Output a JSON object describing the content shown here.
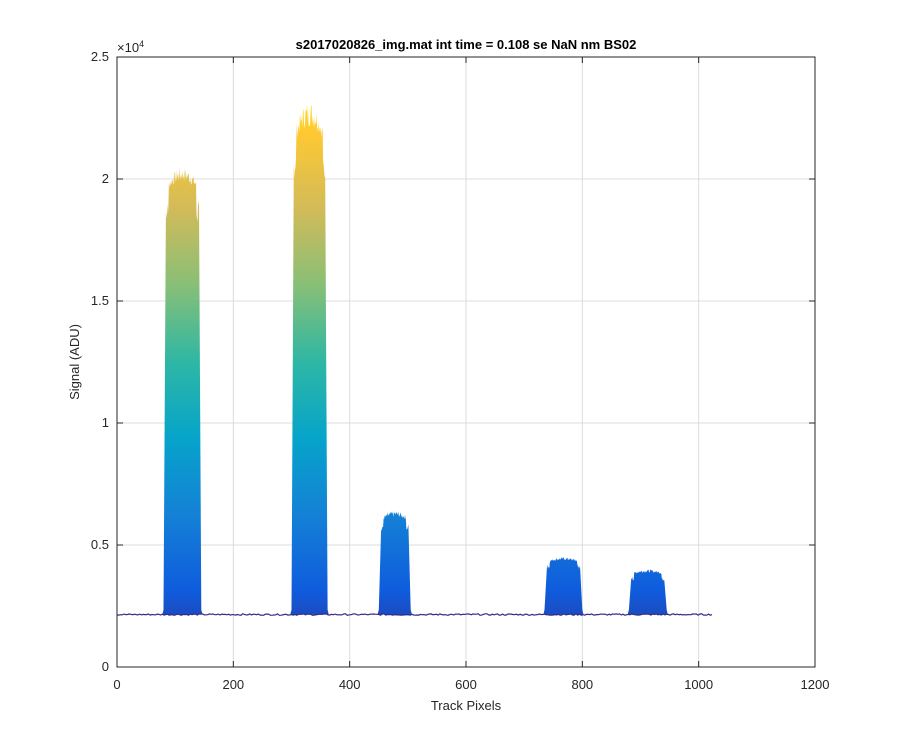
{
  "chart_data": {
    "type": "area",
    "title": "s2017020826_img.mat int time = 0.108 se  NaN nm BS02",
    "xlabel": "Track Pixels",
    "ylabel": "Signal (ADU)",
    "xlim": [
      0,
      1200
    ],
    "ylim": [
      0,
      25000
    ],
    "y_exponent_label": "×10",
    "y_exponent_power": "4",
    "xticks": [
      0,
      200,
      400,
      600,
      800,
      1000,
      1200
    ],
    "xtick_labels": [
      "0",
      "200",
      "400",
      "600",
      "800",
      "1000",
      "1200"
    ],
    "yticks": [
      0,
      5000,
      10000,
      15000,
      20000,
      25000
    ],
    "ytick_labels": [
      "0",
      "0.5",
      "1",
      "1.5",
      "2",
      "2.5"
    ],
    "grid": true,
    "colormap": [
      "#352a87",
      "#0f5cdd",
      "#1481d6",
      "#06a4ca",
      "#2eb7a4",
      "#87bf77",
      "#d1bb59",
      "#fec832",
      "#f9fb0e"
    ],
    "baseline": 2150,
    "trace_x_range": [
      0,
      1023
    ],
    "peaks": [
      {
        "x_start": 80,
        "x_end": 145,
        "peak_value": 20500,
        "top_value": 19500
      },
      {
        "x_start": 300,
        "x_end": 362,
        "peak_value": 23200,
        "top_value": 21500
      },
      {
        "x_start": 450,
        "x_end": 505,
        "peak_value": 6400,
        "top_value": 6000
      },
      {
        "x_start": 735,
        "x_end": 800,
        "peak_value": 4500,
        "top_value": 4300
      },
      {
        "x_start": 880,
        "x_end": 945,
        "peak_value": 4000,
        "top_value": 3800
      }
    ]
  }
}
